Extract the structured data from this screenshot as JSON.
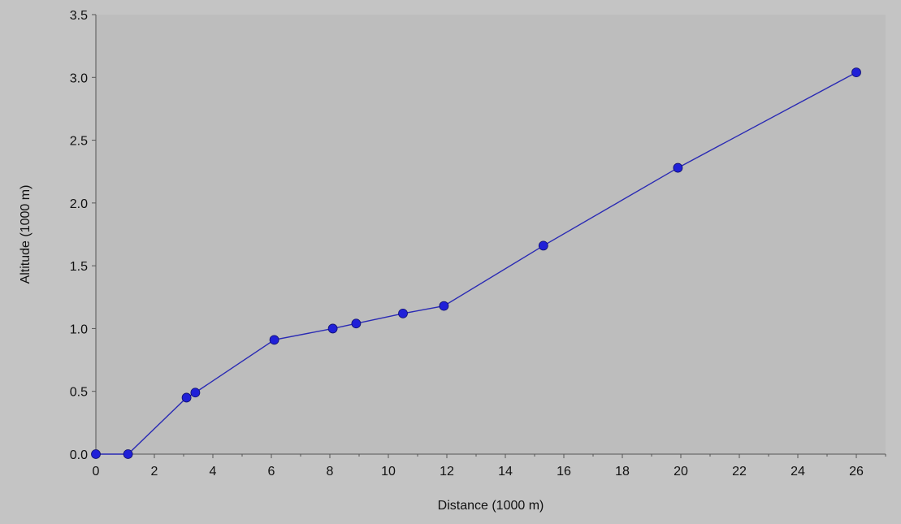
{
  "chart_data": {
    "type": "line",
    "title": "",
    "xlabel": "Distance (1000 m)",
    "ylabel": "Altitude (1000 m)",
    "xlim": [
      0,
      27
    ],
    "ylim": [
      0,
      3.5
    ],
    "x_ticks": [
      "0",
      "2",
      "4",
      "6",
      "8",
      "10",
      "12",
      "14",
      "16",
      "18",
      "20",
      "22",
      "24",
      "26"
    ],
    "y_ticks": [
      "0.0",
      "0.5",
      "1.0",
      "1.5",
      "2.0",
      "2.5",
      "3.0",
      "3.5"
    ],
    "grid": false,
    "legend": "none",
    "series": [
      {
        "x": [
          0,
          1.1,
          3.1,
          3.4,
          6.1,
          8.1,
          8.9,
          10.5,
          11.9,
          15.3,
          19.9,
          26.0
        ],
        "y": [
          0.0,
          0.0,
          0.45,
          0.49,
          0.91,
          1.0,
          1.04,
          1.12,
          1.18,
          1.66,
          2.28,
          3.04
        ]
      }
    ],
    "colors": {
      "background": "#c4c4c4",
      "plot_area": "#bdbdbd",
      "line": "#2a2ab4",
      "marker": "#2020d8",
      "axis": "#555555"
    }
  }
}
